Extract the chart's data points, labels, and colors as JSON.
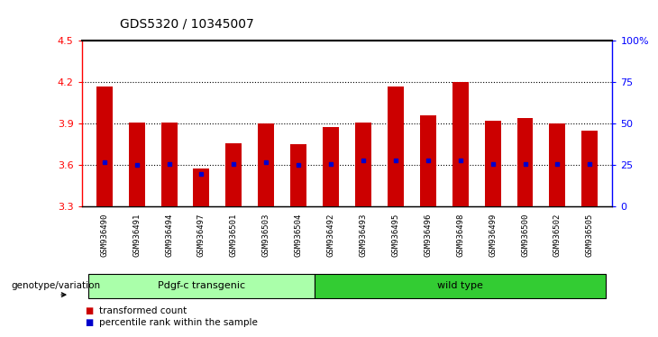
{
  "title": "GDS5320 / 10345007",
  "samples": [
    "GSM936490",
    "GSM936491",
    "GSM936494",
    "GSM936497",
    "GSM936501",
    "GSM936503",
    "GSM936504",
    "GSM936492",
    "GSM936493",
    "GSM936495",
    "GSM936496",
    "GSM936498",
    "GSM936499",
    "GSM936500",
    "GSM936502",
    "GSM936505"
  ],
  "transformed_counts": [
    4.17,
    3.91,
    3.91,
    3.58,
    3.76,
    3.9,
    3.75,
    3.88,
    3.91,
    4.17,
    3.96,
    4.2,
    3.92,
    3.94,
    3.9,
    3.85
  ],
  "percentile_ranks": [
    27,
    25,
    26,
    20,
    26,
    27,
    25,
    26,
    28,
    28,
    28,
    28,
    26,
    26,
    26,
    26
  ],
  "ymin": 3.3,
  "ymax": 4.5,
  "yticks": [
    3.3,
    3.6,
    3.9,
    4.2,
    4.5
  ],
  "right_yticks": [
    0,
    25,
    50,
    75,
    100
  ],
  "right_ytick_labels": [
    "0",
    "25",
    "50",
    "75",
    "100%"
  ],
  "bar_color": "#cc0000",
  "dot_color": "#0000cc",
  "group1_label": "Pdgf-c transgenic",
  "group1_count": 7,
  "group2_label": "wild type",
  "group2_count": 9,
  "group1_color": "#aaffaa",
  "group2_color": "#33cc33",
  "legend_tc": "transformed count",
  "legend_pr": "percentile rank within the sample",
  "genotype_label": "genotype/variation",
  "background_color": "#ffffff",
  "plot_bg_color": "#ffffff",
  "tick_label_area_color": "#c8c8c8"
}
